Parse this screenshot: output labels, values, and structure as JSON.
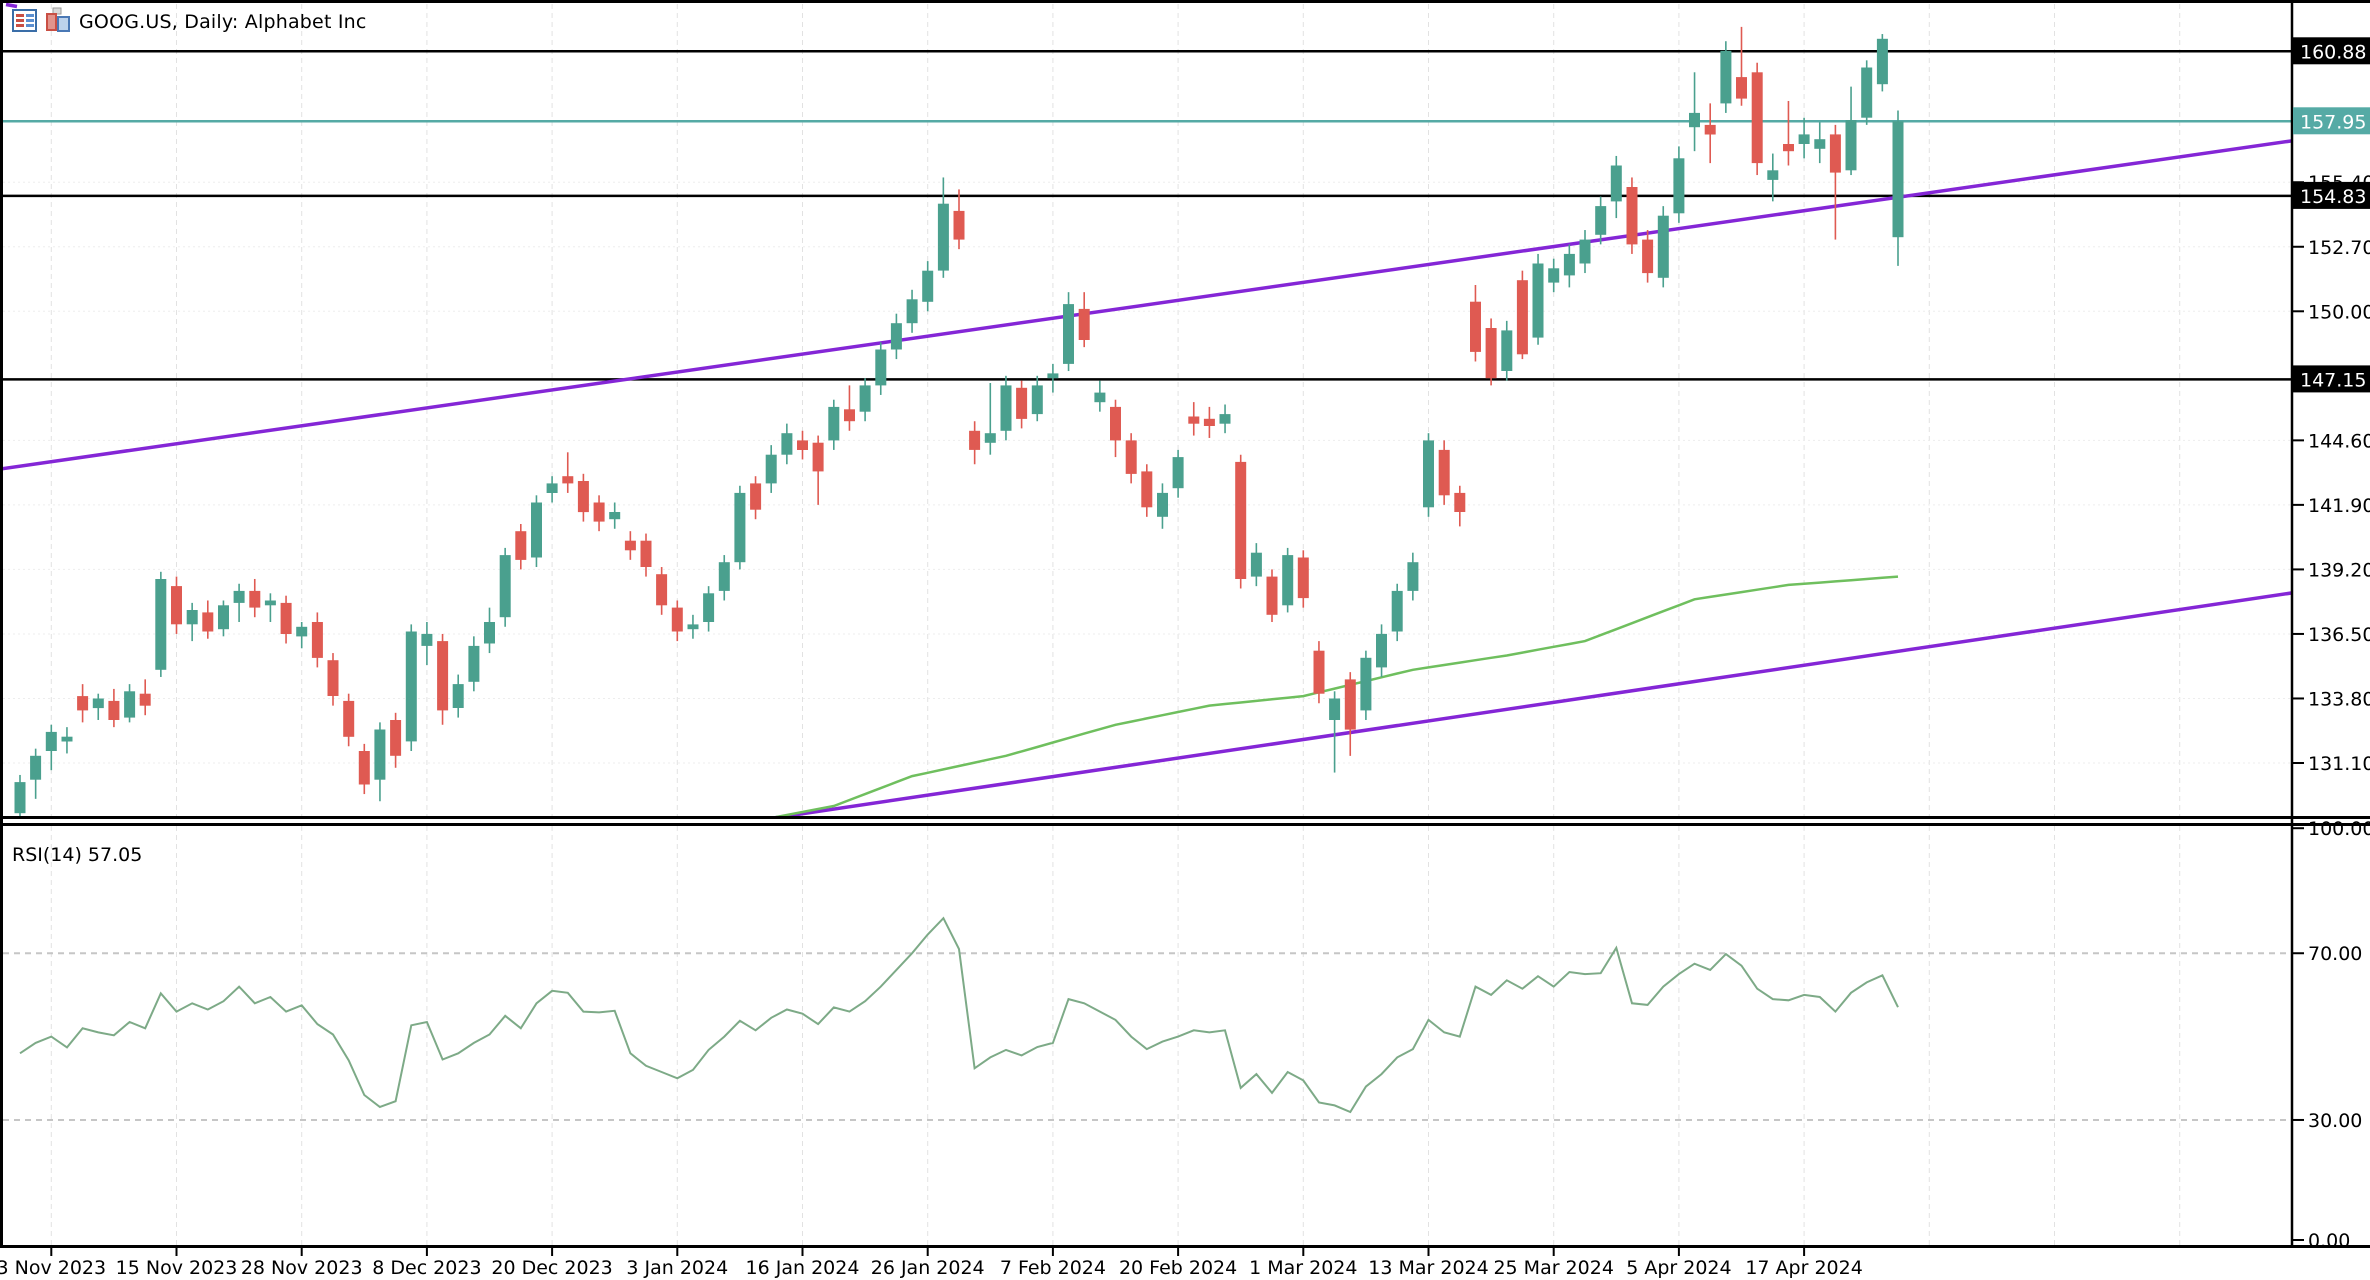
{
  "title": {
    "symbol_info": "GOOG.US, Daily:  Alphabet Inc"
  },
  "indicator_panel": {
    "label": "RSI(14) 57.05",
    "name": "RSI",
    "period": 14,
    "current_value": 57.05,
    "levels": [
      70,
      30
    ],
    "axis_ticks": [
      {
        "v": 100,
        "label": "100.00"
      },
      {
        "v": 70,
        "label": "70.00"
      },
      {
        "v": 30,
        "label": "30.00"
      },
      {
        "v": 0,
        "label": "0.00"
      }
    ]
  },
  "price_axis": {
    "ticks": [
      {
        "v": 155.4,
        "label": "155.40"
      },
      {
        "v": 152.7,
        "label": "152.70"
      },
      {
        "v": 150.0,
        "label": "150.00"
      },
      {
        "v": 144.6,
        "label": "144.60"
      },
      {
        "v": 141.9,
        "label": "141.90"
      },
      {
        "v": 139.2,
        "label": "139.20"
      },
      {
        "v": 136.5,
        "label": "136.50"
      },
      {
        "v": 133.8,
        "label": "133.80"
      },
      {
        "v": 131.1,
        "label": "131.10"
      }
    ],
    "level_badges": [
      {
        "v": 160.88,
        "label": "160.88"
      },
      {
        "v": 154.83,
        "label": "154.83"
      },
      {
        "v": 147.15,
        "label": "147.15"
      }
    ],
    "current_badge": {
      "v": 157.95,
      "label": "157.95"
    }
  },
  "time_axis": {
    "labels": [
      "3 Nov 2023",
      "15 Nov 2023",
      "28 Nov 2023",
      "8 Dec 2023",
      "20 Dec 2023",
      "3 Jan 2024",
      "16 Jan 2024",
      "26 Jan 2024",
      "7 Feb 2024",
      "20 Feb 2024",
      "1 Mar 2024",
      "13 Mar 2024",
      "25 Mar 2024",
      "5 Apr 2024",
      "17 Apr 2024"
    ],
    "first_tick_index": 2,
    "tick_step": 8,
    "extra_grid_indices": [
      122,
      130,
      138
    ]
  },
  "colors": {
    "up": "#4aa08e",
    "down": "#df5a52",
    "current_line": "#55aaa5",
    "level_line": "#000000",
    "trendline": "#8426d6",
    "sma": "#6fbf5e",
    "rsi": "#7daa87",
    "grid_v": "#e2e2e2",
    "grid_h": "#ededed",
    "rsi_grid": "#c6c6c6",
    "badge_black_bg": "#000000",
    "badge_text": "#ffffff",
    "axis_text": "#000000"
  },
  "chart_data": {
    "type": "candlestick",
    "symbol": "GOOG.US",
    "timeframe": "Daily",
    "company": "Alphabet Inc",
    "title": "GOOG.US, Daily:  Alphabet Inc",
    "ylim_price": [
      128.4,
      162.3
    ],
    "ylim_rsi": [
      0,
      100
    ],
    "price_levels": {
      "upper": 160.88,
      "middle": 154.83,
      "lower": 147.15,
      "current_close": 157.95
    },
    "trendlines": [
      {
        "name": "channel-upper",
        "price_at_x0": 143.4,
        "price_at_right": 157.6
      },
      {
        "name": "channel-lower",
        "price_at_x0": 124.0,
        "price_at_right": 138.7
      }
    ],
    "sma_anchors": [
      [
        48,
        128.8
      ],
      [
        52,
        129.3
      ],
      [
        57,
        130.55
      ],
      [
        63,
        131.4
      ],
      [
        70,
        132.7
      ],
      [
        76,
        133.5
      ],
      [
        82,
        133.9
      ],
      [
        89,
        135.0
      ],
      [
        95,
        135.6
      ],
      [
        100,
        136.2
      ],
      [
        107,
        137.95
      ],
      [
        113,
        138.55
      ],
      [
        120,
        138.9
      ]
    ],
    "dates": [
      "1 Nov 2023",
      "2 Nov 2023",
      "3 Nov 2023",
      "6 Nov 2023",
      "7 Nov 2023",
      "8 Nov 2023",
      "9 Nov 2023",
      "10 Nov 2023",
      "13 Nov 2023",
      "14 Nov 2023",
      "15 Nov 2023",
      "16 Nov 2023",
      "17 Nov 2023",
      "20 Nov 2023",
      "21 Nov 2023",
      "22 Nov 2023",
      "24 Nov 2023",
      "27 Nov 2023",
      "28 Nov 2023",
      "29 Nov 2023",
      "30 Nov 2023",
      "1 Dec 2023",
      "4 Dec 2023",
      "5 Dec 2023",
      "6 Dec 2023",
      "7 Dec 2023",
      "8 Dec 2023",
      "11 Dec 2023",
      "12 Dec 2023",
      "13 Dec 2023",
      "14 Dec 2023",
      "15 Dec 2023",
      "18 Dec 2023",
      "19 Dec 2023",
      "20 Dec 2023",
      "21 Dec 2023",
      "22 Dec 2023",
      "26 Dec 2023",
      "27 Dec 2023",
      "28 Dec 2023",
      "29 Dec 2023",
      "2 Jan 2024",
      "3 Jan 2024",
      "4 Jan 2024",
      "5 Jan 2024",
      "8 Jan 2024",
      "9 Jan 2024",
      "10 Jan 2024",
      "11 Jan 2024",
      "12 Jan 2024",
      "16 Jan 2024",
      "17 Jan 2024",
      "18 Jan 2024",
      "19 Jan 2024",
      "22 Jan 2024",
      "23 Jan 2024",
      "24 Jan 2024",
      "25 Jan 2024",
      "26 Jan 2024",
      "29 Jan 2024",
      "30 Jan 2024",
      "31 Jan 2024",
      "1 Feb 2024",
      "2 Feb 2024",
      "5 Feb 2024",
      "6 Feb 2024",
      "7 Feb 2024",
      "8 Feb 2024",
      "9 Feb 2024",
      "12 Feb 2024",
      "13 Feb 2024",
      "14 Feb 2024",
      "15 Feb 2024",
      "16 Feb 2024",
      "20 Feb 2024",
      "21 Feb 2024",
      "22 Feb 2024",
      "23 Feb 2024",
      "26 Feb 2024",
      "27 Feb 2024",
      "28 Feb 2024",
      "29 Feb 2024",
      "1 Mar 2024",
      "4 Mar 2024",
      "5 Mar 2024",
      "6 Mar 2024",
      "7 Mar 2024",
      "8 Mar 2024",
      "11 Mar 2024",
      "12 Mar 2024",
      "13 Mar 2024",
      "14 Mar 2024",
      "15 Mar 2024",
      "18 Mar 2024",
      "19 Mar 2024",
      "20 Mar 2024",
      "21 Mar 2024",
      "22 Mar 2024",
      "25 Mar 2024",
      "26 Mar 2024",
      "27 Mar 2024",
      "28 Mar 2024",
      "1 Apr 2024",
      "2 Apr 2024",
      "3 Apr 2024",
      "4 Apr 2024",
      "5 Apr 2024",
      "8 Apr 2024",
      "9 Apr 2024",
      "10 Apr 2024",
      "11 Apr 2024",
      "12 Apr 2024",
      "15 Apr 2024",
      "16 Apr 2024",
      "17 Apr 2024",
      "18 Apr 2024",
      "19 Apr 2024",
      "22 Apr 2024",
      "23 Apr 2024",
      "24 Apr 2024",
      "25 Apr 2024"
    ],
    "ohlc": [
      [
        129.0,
        130.6,
        127.9,
        130.3
      ],
      [
        130.4,
        131.7,
        129.6,
        131.4
      ],
      [
        131.6,
        132.7,
        130.8,
        132.4
      ],
      [
        132.0,
        132.6,
        131.5,
        132.2
      ],
      [
        133.9,
        134.4,
        132.8,
        133.3
      ],
      [
        133.4,
        134.0,
        132.9,
        133.8
      ],
      [
        133.7,
        134.2,
        132.6,
        132.9
      ],
      [
        133.0,
        134.4,
        132.8,
        134.1
      ],
      [
        134.0,
        134.6,
        133.1,
        133.5
      ],
      [
        135.0,
        139.1,
        134.7,
        138.8
      ],
      [
        138.5,
        138.9,
        136.5,
        136.9
      ],
      [
        136.9,
        137.8,
        136.2,
        137.5
      ],
      [
        137.4,
        137.9,
        136.3,
        136.6
      ],
      [
        136.7,
        137.9,
        136.4,
        137.7
      ],
      [
        137.8,
        138.6,
        137.0,
        138.3
      ],
      [
        138.3,
        138.8,
        137.2,
        137.6
      ],
      [
        137.7,
        138.2,
        137.0,
        137.9
      ],
      [
        137.8,
        138.1,
        136.1,
        136.5
      ],
      [
        136.4,
        137.0,
        135.9,
        136.8
      ],
      [
        137.0,
        137.4,
        135.1,
        135.5
      ],
      [
        135.4,
        135.7,
        133.5,
        133.9
      ],
      [
        133.7,
        134.0,
        131.8,
        132.2
      ],
      [
        131.6,
        131.9,
        129.8,
        130.2
      ],
      [
        130.4,
        132.8,
        129.5,
        132.5
      ],
      [
        132.9,
        133.2,
        130.9,
        131.4
      ],
      [
        132.0,
        136.9,
        131.6,
        136.6
      ],
      [
        136.0,
        137.0,
        135.2,
        136.5
      ],
      [
        136.2,
        136.5,
        132.7,
        133.3
      ],
      [
        133.4,
        134.8,
        133.0,
        134.4
      ],
      [
        134.5,
        136.4,
        134.1,
        136.0
      ],
      [
        136.1,
        137.6,
        135.7,
        137.0
      ],
      [
        137.2,
        140.1,
        136.8,
        139.8
      ],
      [
        140.8,
        141.1,
        139.2,
        139.6
      ],
      [
        139.7,
        142.3,
        139.3,
        142.0
      ],
      [
        142.4,
        143.1,
        142.0,
        142.8
      ],
      [
        143.1,
        144.1,
        142.4,
        142.8
      ],
      [
        142.9,
        143.2,
        141.2,
        141.6
      ],
      [
        142.0,
        142.3,
        140.8,
        141.2
      ],
      [
        141.3,
        142.0,
        140.9,
        141.6
      ],
      [
        140.4,
        140.8,
        139.6,
        140.0
      ],
      [
        140.4,
        140.7,
        138.9,
        139.3
      ],
      [
        139.0,
        139.3,
        137.3,
        137.7
      ],
      [
        137.6,
        137.9,
        136.2,
        136.6
      ],
      [
        136.7,
        137.3,
        136.3,
        136.9
      ],
      [
        137.0,
        138.5,
        136.6,
        138.2
      ],
      [
        138.3,
        139.8,
        137.9,
        139.5
      ],
      [
        139.5,
        142.7,
        139.2,
        142.4
      ],
      [
        142.8,
        143.1,
        141.3,
        141.7
      ],
      [
        142.8,
        144.4,
        142.4,
        144.0
      ],
      [
        144.0,
        145.3,
        143.6,
        144.9
      ],
      [
        144.6,
        145.0,
        143.8,
        144.2
      ],
      [
        144.5,
        144.8,
        141.9,
        143.3
      ],
      [
        144.6,
        146.3,
        144.2,
        146.0
      ],
      [
        145.9,
        146.9,
        145.0,
        145.4
      ],
      [
        145.8,
        147.2,
        145.4,
        146.9
      ],
      [
        146.9,
        148.7,
        146.5,
        148.4
      ],
      [
        148.4,
        149.9,
        148.0,
        149.5
      ],
      [
        149.5,
        150.9,
        149.1,
        150.5
      ],
      [
        150.4,
        152.1,
        150.0,
        151.7
      ],
      [
        151.7,
        155.6,
        151.4,
        154.5
      ],
      [
        154.2,
        155.1,
        152.6,
        153.0
      ],
      [
        145.0,
        145.4,
        143.6,
        144.2
      ],
      [
        144.5,
        147.0,
        144.0,
        144.9
      ],
      [
        145.0,
        147.3,
        144.6,
        146.9
      ],
      [
        146.8,
        147.1,
        145.1,
        145.5
      ],
      [
        145.7,
        147.3,
        145.4,
        146.9
      ],
      [
        147.2,
        147.8,
        146.6,
        147.4
      ],
      [
        147.8,
        150.8,
        147.5,
        150.3
      ],
      [
        150.1,
        150.8,
        148.5,
        148.8
      ],
      [
        146.2,
        147.1,
        145.8,
        146.6
      ],
      [
        146.0,
        146.3,
        143.9,
        144.6
      ],
      [
        144.6,
        144.9,
        142.8,
        143.2
      ],
      [
        143.3,
        143.6,
        141.4,
        141.8
      ],
      [
        141.4,
        142.8,
        140.9,
        142.4
      ],
      [
        142.6,
        144.2,
        142.2,
        143.9
      ],
      [
        145.6,
        146.2,
        144.8,
        145.3
      ],
      [
        145.5,
        146.0,
        144.7,
        145.2
      ],
      [
        145.3,
        146.1,
        144.9,
        145.7
      ],
      [
        143.7,
        144.0,
        138.4,
        138.8
      ],
      [
        138.9,
        140.3,
        138.5,
        139.9
      ],
      [
        138.9,
        139.2,
        137.0,
        137.3
      ],
      [
        137.7,
        140.1,
        137.4,
        139.8
      ],
      [
        139.7,
        140.0,
        137.6,
        138.0
      ],
      [
        135.8,
        136.2,
        133.6,
        134.0
      ],
      [
        132.9,
        134.1,
        130.7,
        133.8
      ],
      [
        134.6,
        134.9,
        131.4,
        132.5
      ],
      [
        133.3,
        135.8,
        132.9,
        135.5
      ],
      [
        135.1,
        136.9,
        134.7,
        136.5
      ],
      [
        136.6,
        138.6,
        136.2,
        138.3
      ],
      [
        138.3,
        139.9,
        137.9,
        139.5
      ],
      [
        141.8,
        144.9,
        141.4,
        144.6
      ],
      [
        144.2,
        144.6,
        141.9,
        142.3
      ],
      [
        142.4,
        142.7,
        141.0,
        141.6
      ],
      [
        150.4,
        151.1,
        147.9,
        148.3
      ],
      [
        149.3,
        149.7,
        146.9,
        147.2
      ],
      [
        147.5,
        149.6,
        147.1,
        149.2
      ],
      [
        151.3,
        151.7,
        148.0,
        148.2
      ],
      [
        148.9,
        152.4,
        148.6,
        152.0
      ],
      [
        151.2,
        152.2,
        150.8,
        151.8
      ],
      [
        151.5,
        152.8,
        151.0,
        152.4
      ],
      [
        152.0,
        153.4,
        151.6,
        153.0
      ],
      [
        153.2,
        154.8,
        152.8,
        154.4
      ],
      [
        154.6,
        156.5,
        153.9,
        156.1
      ],
      [
        155.2,
        155.6,
        152.4,
        152.8
      ],
      [
        153.0,
        153.4,
        151.2,
        151.6
      ],
      [
        151.4,
        154.4,
        151.0,
        154.0
      ],
      [
        154.1,
        156.9,
        153.7,
        156.4
      ],
      [
        157.7,
        160.0,
        156.7,
        158.3
      ],
      [
        157.8,
        158.7,
        156.2,
        157.4
      ],
      [
        158.7,
        161.3,
        158.3,
        160.9
      ],
      [
        159.8,
        161.9,
        158.6,
        158.9
      ],
      [
        160.0,
        160.4,
        155.7,
        156.2
      ],
      [
        155.5,
        156.6,
        154.6,
        155.9
      ],
      [
        157.0,
        158.8,
        156.1,
        156.7
      ],
      [
        157.0,
        158.1,
        156.4,
        157.4
      ],
      [
        156.8,
        157.9,
        156.2,
        157.2
      ],
      [
        157.4,
        157.8,
        153.0,
        155.8
      ],
      [
        155.9,
        159.4,
        155.7,
        158.0
      ],
      [
        158.1,
        160.5,
        157.8,
        160.2
      ],
      [
        159.5,
        161.6,
        159.2,
        161.4
      ],
      [
        153.1,
        158.4,
        151.9,
        157.95
      ]
    ],
    "rsi14": [
      46,
      48.5,
      50,
      47.4,
      52,
      51,
      50.3,
      53.5,
      52,
      60.4,
      56,
      58,
      56.5,
      58.5,
      62,
      58,
      59.5,
      56,
      57.5,
      53,
      50.5,
      44.3,
      36,
      33.1,
      34.5,
      52.7,
      53.5,
      44.5,
      46,
      48.5,
      50.5,
      55,
      52,
      58,
      61,
      60.5,
      56,
      55.8,
      56.2,
      46,
      43,
      41.5,
      40,
      42,
      46.8,
      50,
      53.8,
      51.5,
      54.5,
      56.5,
      55.5,
      53,
      57,
      56,
      58.5,
      62,
      66,
      70,
      74.5,
      78.4,
      71,
      42.4,
      45,
      46.8,
      45.5,
      47.5,
      48.5,
      59,
      58,
      56,
      54,
      50,
      47,
      48.8,
      50,
      51.5,
      51,
      51.5,
      37.7,
      41,
      36.5,
      41.5,
      39.5,
      34.2,
      33.5,
      31.9,
      38,
      41,
      45,
      47,
      54,
      51,
      50,
      62,
      60,
      63.5,
      61.5,
      64.5,
      62,
      65.5,
      65,
      65.2,
      71.3,
      58,
      57.6,
      62,
      65,
      67.5,
      66,
      69.8,
      67,
      61.5,
      59,
      58.7,
      60,
      59.5,
      56,
      60.5,
      63,
      64.7,
      57.05
    ]
  }
}
